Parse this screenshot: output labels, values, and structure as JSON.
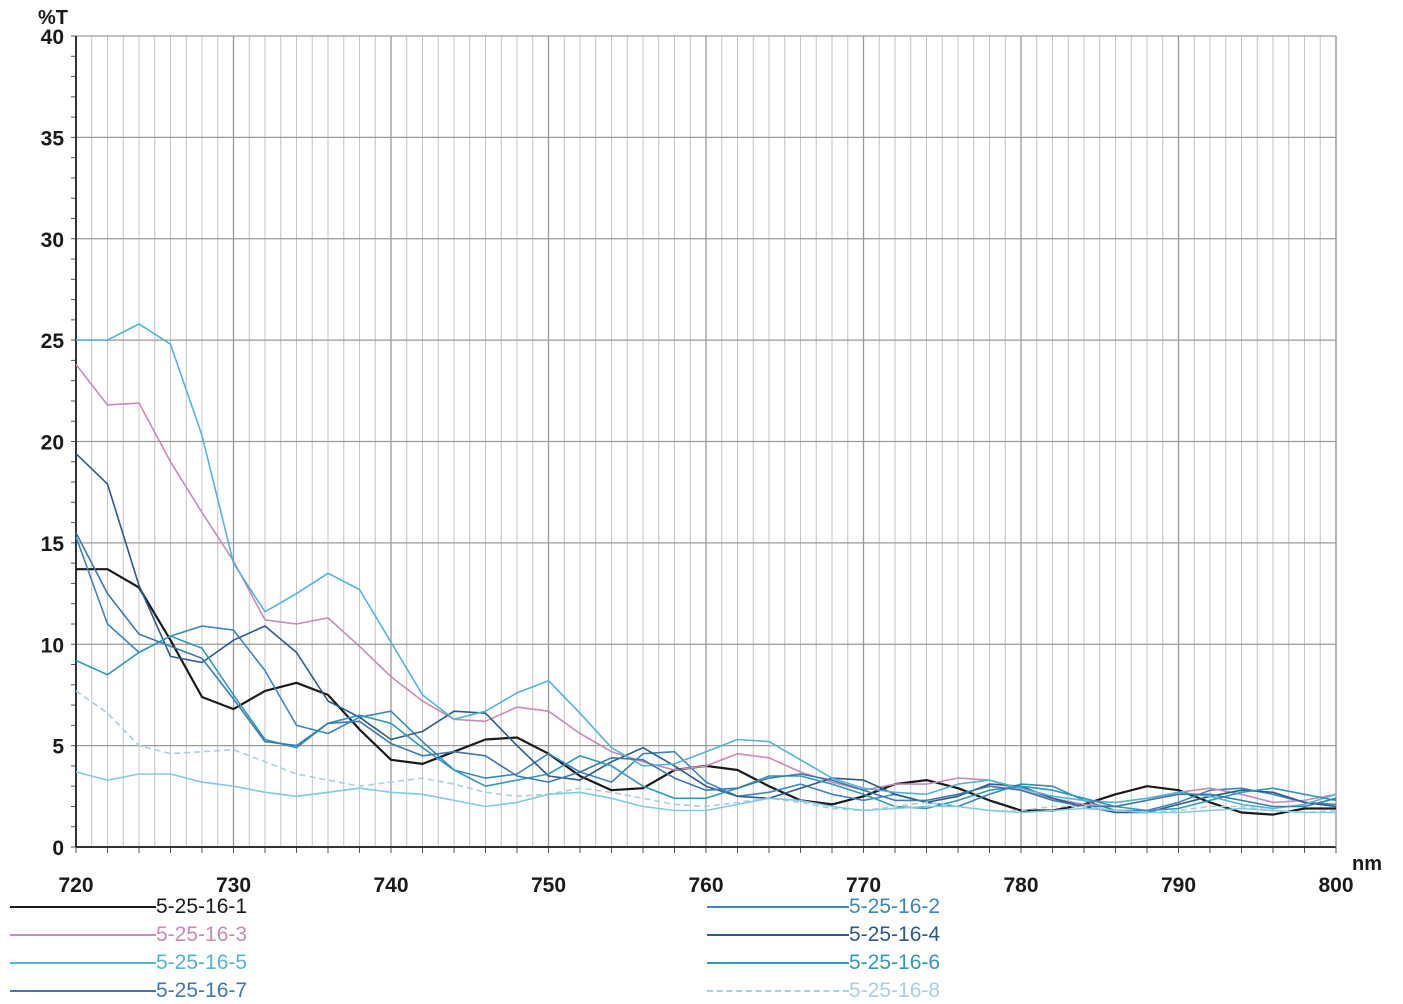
{
  "chart_data": {
    "type": "line",
    "xlabel": "nm",
    "ylabel": "%T",
    "xlim": [
      720,
      800
    ],
    "ylim": [
      0,
      40
    ],
    "x_ticks": [
      720,
      730,
      740,
      750,
      760,
      770,
      780,
      790,
      800
    ],
    "y_ticks": [
      0,
      5,
      10,
      15,
      20,
      25,
      30,
      35,
      40
    ],
    "grid": true,
    "legend_position": "bottom",
    "x": [
      720,
      722,
      724,
      726,
      728,
      730,
      732,
      734,
      736,
      738,
      740,
      742,
      744,
      746,
      748,
      750,
      752,
      754,
      756,
      758,
      760,
      762,
      764,
      766,
      768,
      770,
      772,
      774,
      776,
      778,
      780,
      782,
      784,
      786,
      788,
      790,
      792,
      794,
      796,
      798,
      800
    ],
    "series": [
      {
        "name": "5-25-16-1",
        "color": "#1a1a1a",
        "values": [
          13.7,
          13.7,
          12.8,
          10.2,
          7.4,
          6.8,
          7.7,
          8.1,
          7.5,
          5.8,
          4.3,
          4.1,
          4.7,
          5.3,
          5.4,
          4.6,
          3.5,
          2.8,
          2.9,
          3.8,
          4.0,
          3.8,
          3.0,
          2.3,
          2.1,
          2.5,
          3.1,
          3.3,
          2.9,
          2.3,
          1.8,
          1.8,
          2.1,
          2.6,
          3.0,
          2.8,
          2.2,
          1.7,
          1.6,
          1.9,
          1.9
        ]
      },
      {
        "name": "5-25-16-2",
        "color": "#3a86c0",
        "values": [
          15.3,
          11.0,
          9.6,
          10.4,
          10.9,
          10.7,
          8.7,
          6.0,
          5.6,
          6.4,
          6.7,
          5.2,
          3.8,
          3.4,
          3.6,
          4.6,
          3.7,
          3.2,
          4.6,
          4.7,
          3.2,
          2.5,
          2.7,
          3.1,
          2.6,
          2.3,
          2.6,
          2.2,
          2.0,
          2.6,
          3.1,
          3.0,
          2.3,
          1.8,
          1.8,
          2.2,
          2.8,
          2.9,
          2.6,
          2.2,
          2.1
        ]
      },
      {
        "name": "5-25-16-3",
        "color": "#c98ab8",
        "values": [
          23.8,
          21.8,
          21.9,
          19.0,
          16.5,
          14.1,
          11.2,
          11.0,
          11.3,
          9.9,
          8.4,
          7.2,
          6.3,
          6.2,
          6.9,
          6.7,
          5.6,
          4.7,
          4.2,
          3.8,
          4.0,
          4.6,
          4.4,
          3.7,
          3.2,
          2.8,
          3.1,
          3.1,
          3.4,
          3.3,
          2.8,
          2.4,
          2.1,
          2.0,
          2.3,
          2.7,
          2.9,
          2.6,
          2.2,
          2.3,
          2.6
        ]
      },
      {
        "name": "5-25-16-4",
        "color": "#2a5b8c",
        "values": [
          19.4,
          17.9,
          12.9,
          9.4,
          9.1,
          10.2,
          10.9,
          9.6,
          7.2,
          6.4,
          5.3,
          5.7,
          6.7,
          6.6,
          5.0,
          3.5,
          3.3,
          4.2,
          4.9,
          4.0,
          3.0,
          2.5,
          2.4,
          2.9,
          3.4,
          3.3,
          2.6,
          2.2,
          2.5,
          3.1,
          3.0,
          2.4,
          2.0,
          1.7,
          1.7,
          2.1,
          2.5,
          2.8,
          2.7,
          2.2,
          2.0
        ]
      },
      {
        "name": "5-25-16-5",
        "color": "#4fb6d8",
        "values": [
          25.0,
          25.0,
          25.8,
          24.8,
          20.3,
          14.0,
          11.6,
          12.5,
          13.5,
          12.7,
          10.1,
          7.5,
          6.3,
          6.7,
          7.6,
          8.2,
          6.6,
          4.9,
          4.0,
          4.1,
          4.7,
          5.3,
          5.2,
          4.3,
          3.4,
          2.9,
          2.7,
          2.6,
          3.1,
          3.3,
          2.9,
          2.5,
          2.3,
          2.2,
          2.4,
          2.7,
          2.5,
          2.1,
          1.9,
          2.1,
          2.6
        ]
      },
      {
        "name": "5-25-16-6",
        "color": "#2a9bb8",
        "values": [
          9.2,
          8.5,
          9.6,
          10.4,
          9.8,
          7.5,
          5.3,
          4.9,
          6.1,
          6.5,
          6.1,
          4.9,
          3.8,
          3.0,
          3.3,
          3.6,
          4.5,
          4.0,
          3.0,
          2.4,
          2.4,
          2.9,
          3.5,
          3.5,
          3.1,
          2.6,
          2.0,
          1.9,
          2.3,
          2.8,
          3.0,
          2.8,
          2.4,
          2.0,
          1.8,
          1.9,
          2.3,
          2.7,
          2.9,
          2.6,
          2.3
        ]
      },
      {
        "name": "5-25-16-7",
        "color": "#3a7ab0",
        "values": [
          15.5,
          12.5,
          10.5,
          9.9,
          9.3,
          7.3,
          5.2,
          5.0,
          6.1,
          6.2,
          5.1,
          4.5,
          4.7,
          4.5,
          3.5,
          3.2,
          3.7,
          4.4,
          4.3,
          3.4,
          2.8,
          2.9,
          3.4,
          3.6,
          3.3,
          2.8,
          2.3,
          2.3,
          2.6,
          3.0,
          2.8,
          2.3,
          2.0,
          2.0,
          2.3,
          2.6,
          2.6,
          2.3,
          2.0,
          2.0,
          2.4
        ]
      },
      {
        "name": "5-25-16-8",
        "color": "#a9cfe0",
        "values": [
          7.7,
          6.6,
          5.0,
          4.6,
          4.7,
          4.8,
          4.2,
          3.6,
          3.3,
          3.0,
          3.2,
          3.4,
          3.1,
          2.7,
          2.5,
          2.6,
          2.9,
          2.7,
          2.4,
          2.1,
          2.0,
          2.2,
          2.4,
          2.2,
          1.9,
          1.8,
          2.0,
          2.2,
          2.0,
          1.8,
          1.8,
          2.0,
          2.0,
          1.8,
          1.7,
          1.8,
          2.0,
          2.0,
          1.8,
          1.7,
          1.8
        ]
      },
      {
        "name": "",
        "color": "#7fcbe4",
        "values": [
          3.7,
          3.3,
          3.6,
          3.6,
          3.2,
          3.0,
          2.7,
          2.5,
          2.7,
          2.9,
          2.7,
          2.6,
          2.3,
          2.0,
          2.2,
          2.6,
          2.7,
          2.4,
          2.0,
          1.8,
          1.8,
          2.1,
          2.4,
          2.3,
          2.0,
          1.8,
          1.9,
          2.0,
          2.0,
          1.8,
          1.7,
          1.8,
          1.9,
          1.8,
          1.7,
          1.7,
          1.8,
          1.9,
          1.8,
          1.7,
          1.7
        ]
      }
    ]
  }
}
